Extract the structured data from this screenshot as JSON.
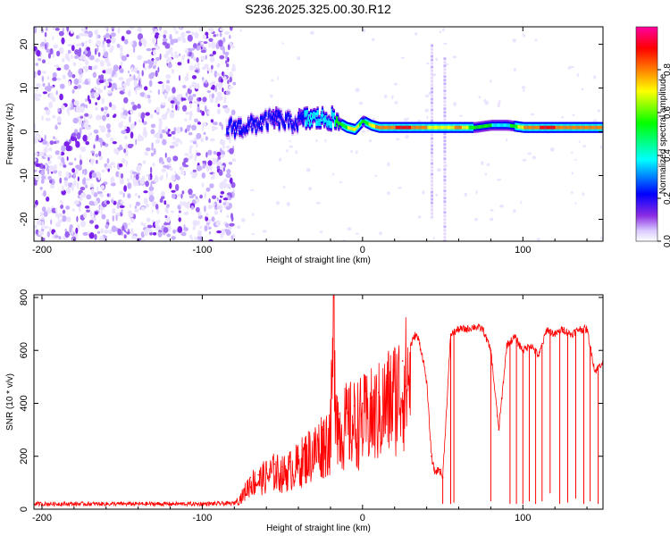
{
  "figure_title": "S236.2025.325.00.30.R12",
  "chart_data": [
    {
      "type": "heatmap",
      "xlabel": "Height of straight line (km)",
      "ylabel": "Frequency (Hz)",
      "xlim": [
        -205,
        150
      ],
      "ylim": [
        -25,
        24
      ],
      "xticks": [
        -200,
        -100,
        0,
        100
      ],
      "xtick_labels": [
        "-200",
        "-100",
        "0",
        "100"
      ],
      "yticks": [
        20,
        10,
        0,
        -10,
        -20
      ],
      "ytick_labels": [
        "20",
        "10",
        "0",
        "-10",
        "-20"
      ],
      "colorbar": {
        "label": "Normalized spectral amplitude",
        "range": [
          0,
          1
        ],
        "ticks": [
          0.0,
          0.2,
          0.4,
          0.6,
          0.8
        ],
        "tick_labels": [
          "0.0",
          "0.2",
          "0.4",
          "0.6",
          "0.8"
        ],
        "colors": [
          "#ffffff",
          "#d8c8ff",
          "#8a2be2",
          "#0000ff",
          "#00ffff",
          "#00ff00",
          "#ffff00",
          "#ff7f00",
          "#ff0000",
          "#ff00a0"
        ]
      },
      "noise_region": {
        "x": [
          -205,
          -80
        ],
        "y": [
          -25,
          24
        ],
        "amplitude": 0.2
      },
      "ridge": {
        "x": [
          -85,
          -75,
          -65,
          -55,
          -45,
          -35,
          -25,
          -20,
          -15,
          -10,
          -5,
          0,
          5,
          10,
          20,
          30,
          40,
          50,
          60,
          70,
          80,
          90,
          100,
          110,
          120,
          130,
          140,
          150
        ],
        "freq": [
          1,
          1,
          2,
          3,
          2,
          3,
          3,
          3,
          2,
          1,
          0.5,
          2.5,
          1.5,
          1,
          1,
          1,
          1,
          1,
          1,
          1,
          1.5,
          1.5,
          1,
          1,
          1,
          1,
          1,
          1
        ],
        "amplitude": [
          0.25,
          0.3,
          0.3,
          0.35,
          0.3,
          0.4,
          0.45,
          0.5,
          0.6,
          0.7,
          0.8,
          0.6,
          0.75,
          0.85,
          0.9,
          0.9,
          0.8,
          0.7,
          0.85,
          0.6,
          0.55,
          0.5,
          0.8,
          0.9,
          0.9,
          0.85,
          0.8,
          0.8
        ]
      },
      "vertical_streaks": [
        {
          "x": 43,
          "y": [
            -20,
            20
          ],
          "amplitude": 0.1
        },
        {
          "x": 51,
          "y": [
            -25,
            17
          ],
          "amplitude": 0.15
        }
      ]
    },
    {
      "type": "line",
      "xlabel": "Height of straight line (km)",
      "ylabel": "SNR (10 * v/v)",
      "xlim": [
        -205,
        150
      ],
      "ylim": [
        0,
        810
      ],
      "xticks": [
        -200,
        -100,
        0,
        100
      ],
      "xtick_labels": [
        "-200",
        "-100",
        "0",
        "100"
      ],
      "yticks": [
        0,
        200,
        400,
        600,
        800
      ],
      "ytick_labels": [
        "0",
        "200",
        "400",
        "600",
        "800"
      ],
      "color": "#ff0000",
      "series": [
        {
          "name": "SNR",
          "x": [
            -205,
            -150,
            -100,
            -80,
            -75,
            -70,
            -65,
            -60,
            -55,
            -50,
            -45,
            -40,
            -35,
            -30,
            -25,
            -20,
            -18,
            -15,
            -10,
            -5,
            0,
            5,
            10,
            15,
            20,
            25,
            30,
            33,
            35,
            38,
            40,
            43,
            45,
            48,
            50,
            55,
            60,
            65,
            70,
            75,
            80,
            85,
            90,
            95,
            100,
            105,
            110,
            115,
            120,
            125,
            130,
            135,
            140,
            145,
            150
          ],
          "y": [
            20,
            20,
            20,
            22,
            60,
            120,
            130,
            150,
            170,
            160,
            180,
            200,
            240,
            260,
            300,
            330,
            800,
            360,
            380,
            390,
            400,
            420,
            440,
            480,
            520,
            560,
            620,
            660,
            640,
            560,
            480,
            200,
            140,
            150,
            120,
            660,
            680,
            680,
            690,
            680,
            600,
            300,
            620,
            650,
            600,
            620,
            580,
            680,
            660,
            680,
            660,
            680,
            680,
            520,
            560
          ]
        }
      ],
      "dropouts": [
        {
          "x": 50,
          "y": 20
        },
        {
          "x": 55,
          "y": 20
        },
        {
          "x": 57,
          "y": 25
        },
        {
          "x": 80,
          "y": 30
        },
        {
          "x": 92,
          "y": 20
        },
        {
          "x": 96,
          "y": 20
        },
        {
          "x": 100,
          "y": 20
        },
        {
          "x": 104,
          "y": 30
        },
        {
          "x": 108,
          "y": 20
        },
        {
          "x": 112,
          "y": 30
        },
        {
          "x": 117,
          "y": 60
        },
        {
          "x": 123,
          "y": 20
        },
        {
          "x": 128,
          "y": 25
        },
        {
          "x": 133,
          "y": 40
        },
        {
          "x": 138,
          "y": 20
        },
        {
          "x": 142,
          "y": 30
        },
        {
          "x": 147,
          "y": 20
        }
      ]
    }
  ]
}
